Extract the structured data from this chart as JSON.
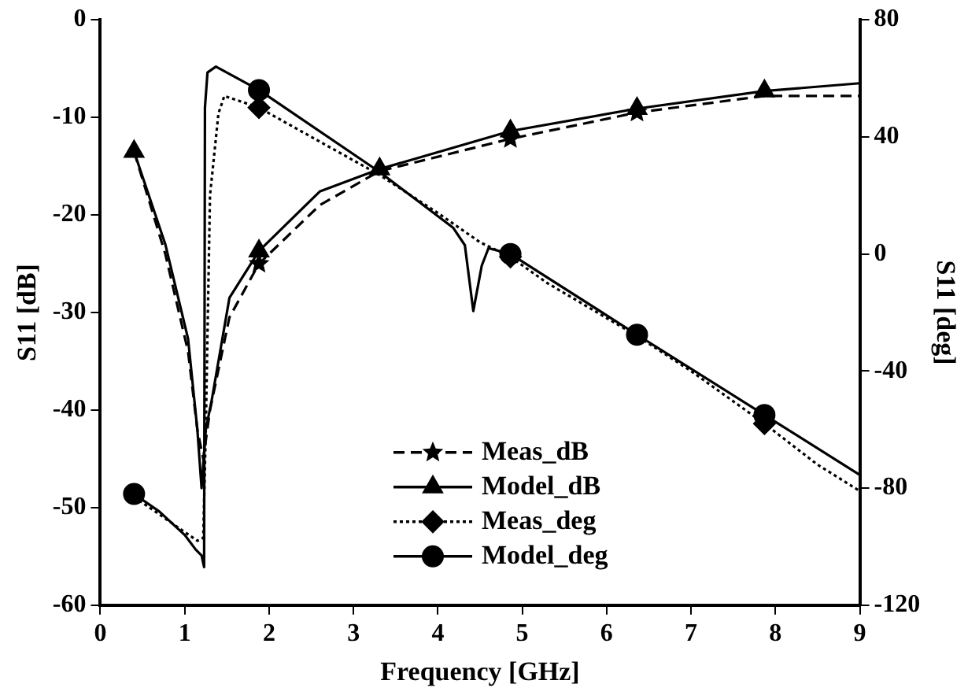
{
  "chart_data": {
    "type": "line",
    "xlabel": "Frequency [GHz]",
    "ylabel": "S11 [dB]",
    "y2label": "S11 [deg]",
    "xlim": [
      0,
      9
    ],
    "xticks": [
      0,
      1,
      2,
      3,
      4,
      5,
      6,
      7,
      8,
      9
    ],
    "ylim": [
      -60,
      0
    ],
    "yticks": [
      -60,
      -50,
      -40,
      -30,
      -20,
      -10,
      0
    ],
    "y2lim": [
      -120,
      80
    ],
    "y2ticks": [
      -120,
      -80,
      -40,
      0,
      40,
      80
    ],
    "grid": false,
    "legend": "bottom",
    "series": [
      {
        "type": "scatter",
        "name": "Meas_dB",
        "color": "#000000",
        "line_style": "dashed",
        "marker": "star",
        "x": [
          1.88,
          4.86,
          6.36
        ],
        "values": [
          -25,
          -12.2,
          -9.5
        ]
      },
      {
        "type": "scatter",
        "name": "Model_dB",
        "color": "#000000",
        "line_style": "solid",
        "marker": "triangle",
        "x": [
          0.4,
          1.88,
          3.31,
          4.86,
          6.36,
          7.87
        ],
        "values": [
          -13.5,
          -23.7,
          -15.3,
          -11.4,
          -9.1,
          -7.3
        ]
      },
      {
        "type": "scatter",
        "name": "Meas_deg",
        "axis": "y2",
        "color": "#000000",
        "line_style": "dotted",
        "marker": "diamond",
        "x": [
          1.88,
          4.86,
          7.87
        ],
        "values": [
          50,
          -1,
          -58
        ]
      },
      {
        "type": "scatter",
        "name": "Model_deg",
        "axis": "y2",
        "color": "#000000",
        "line_style": "solid",
        "marker": "circle",
        "x": [
          0.4,
          1.88,
          4.86,
          6.36,
          7.87
        ],
        "values": [
          -82,
          56,
          0,
          -27.6,
          -55
        ]
      },
      {
        "color": "#000000",
        "line_style": "dashed",
        "marker": "none",
        "x": [
          0.4,
          0.77,
          1.04,
          1.15,
          1.22,
          1.3,
          1.53,
          1.88,
          2.6,
          3.31,
          4.86,
          6.36,
          7.87,
          9
        ],
        "values": [
          -13.5,
          -24,
          -34,
          -42,
          -45,
          -40,
          -30.5,
          -25,
          -19,
          -15.5,
          -12.2,
          -9.5,
          -7.8,
          -7.8
        ]
      },
      {
        "color": "#000000",
        "line_style": "solid",
        "marker": "none",
        "x": [
          0.4,
          0.77,
          1.04,
          1.15,
          1.2,
          1.25,
          1.32,
          1.53,
          1.88,
          2.6,
          3.31,
          4.86,
          6.36,
          7.87,
          9
        ],
        "values": [
          -13.5,
          -23,
          -32.7,
          -42,
          -48,
          -42,
          -39,
          -28.5,
          -23.7,
          -17.6,
          -15.3,
          -11.4,
          -9.1,
          -7.3,
          -6.5
        ]
      },
      {
        "axis": "y2",
        "color": "#000000",
        "line_style": "dotted",
        "marker": "none",
        "x": [
          0.4,
          0.7,
          1.0,
          1.15,
          1.22,
          1.25,
          1.3,
          1.4,
          1.47,
          1.88,
          2.5,
          3.31,
          4.0,
          4.5,
          4.86,
          5.3,
          6.36,
          7.0,
          7.87,
          8.5,
          9
        ],
        "values": [
          -83,
          -89,
          -95,
          -98,
          -97,
          -60,
          20,
          48,
          54,
          50,
          40,
          27,
          14,
          4,
          -1,
          -10,
          -28,
          -40,
          -58,
          -72,
          -81
        ]
      },
      {
        "axis": "y2",
        "color": "#000000",
        "line_style": "solid",
        "marker": "none",
        "x": [
          0.4,
          0.7,
          1.0,
          1.13,
          1.2,
          1.23,
          1.24,
          1.27,
          1.37,
          1.88,
          3.31,
          4.18,
          4.32,
          4.42,
          4.52,
          4.6,
          4.86,
          6.36,
          7.87,
          9
        ],
        "values": [
          -82,
          -88,
          -96,
          -101,
          -103,
          -107,
          50,
          62,
          64,
          56,
          28,
          9,
          3,
          -19.5,
          -4,
          2,
          0,
          -27.6,
          -55,
          -75.5
        ]
      }
    ]
  }
}
